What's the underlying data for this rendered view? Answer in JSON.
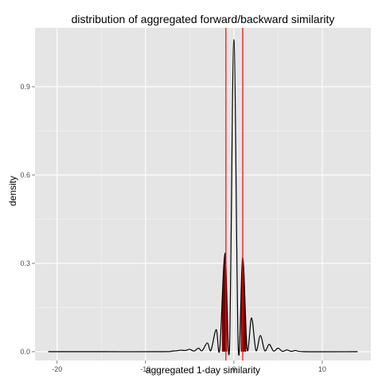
{
  "chart_data": {
    "type": "line",
    "title": "distribution of aggregated forward/backward similarity",
    "xlabel": "aggregated 1-day similarity",
    "ylabel": "density",
    "xlim": [
      -22.5,
      15.5
    ],
    "ylim": [
      -0.03,
      1.1
    ],
    "x_ticks": [
      -20,
      -10,
      0,
      10
    ],
    "x_tick_labels": [
      "-20",
      "-10",
      "0",
      "10"
    ],
    "y_ticks": [
      0.0,
      0.3,
      0.6,
      0.9
    ],
    "y_tick_labels": [
      "0.0",
      "0.3",
      "0.6",
      "0.9"
    ],
    "grid": true,
    "panel_background": "#e5e5e5",
    "grid_color": "#ffffff",
    "vlines": [
      {
        "x": -0.9,
        "color": "#ff0000"
      },
      {
        "x": 1.0,
        "color": "#ff0000"
      }
    ],
    "fill_color": "#7a0000",
    "series": [
      {
        "color": "#000000",
        "points": [
          [
            -21,
            0.0
          ],
          [
            -15,
            0.0
          ],
          [
            -8,
            0.0
          ],
          [
            -7.0,
            0.002
          ],
          [
            -6.5,
            0.003
          ],
          [
            -6.0,
            0.005
          ],
          [
            -5.5,
            0.004
          ],
          [
            -5.0,
            0.008
          ],
          [
            -4.5,
            0.002
          ],
          [
            -4.0,
            0.012
          ],
          [
            -3.6,
            0.003
          ],
          [
            -3.0,
            0.03
          ],
          [
            -2.6,
            0.004
          ],
          [
            -2.0,
            0.075
          ],
          [
            -1.6,
            0.008
          ],
          [
            -1.0,
            0.335
          ],
          [
            -0.5,
            0.01
          ],
          [
            0.0,
            1.06
          ],
          [
            0.5,
            0.01
          ],
          [
            1.0,
            0.32
          ],
          [
            1.5,
            0.008
          ],
          [
            2.0,
            0.115
          ],
          [
            2.5,
            0.004
          ],
          [
            3.0,
            0.055
          ],
          [
            3.5,
            0.003
          ],
          [
            4.0,
            0.025
          ],
          [
            4.5,
            0.002
          ],
          [
            5.0,
            0.012
          ],
          [
            5.5,
            0.001
          ],
          [
            6.0,
            0.006
          ],
          [
            6.5,
            0.001
          ],
          [
            7.0,
            0.004
          ],
          [
            8,
            0.0
          ],
          [
            14,
            0.0
          ]
        ]
      }
    ]
  }
}
